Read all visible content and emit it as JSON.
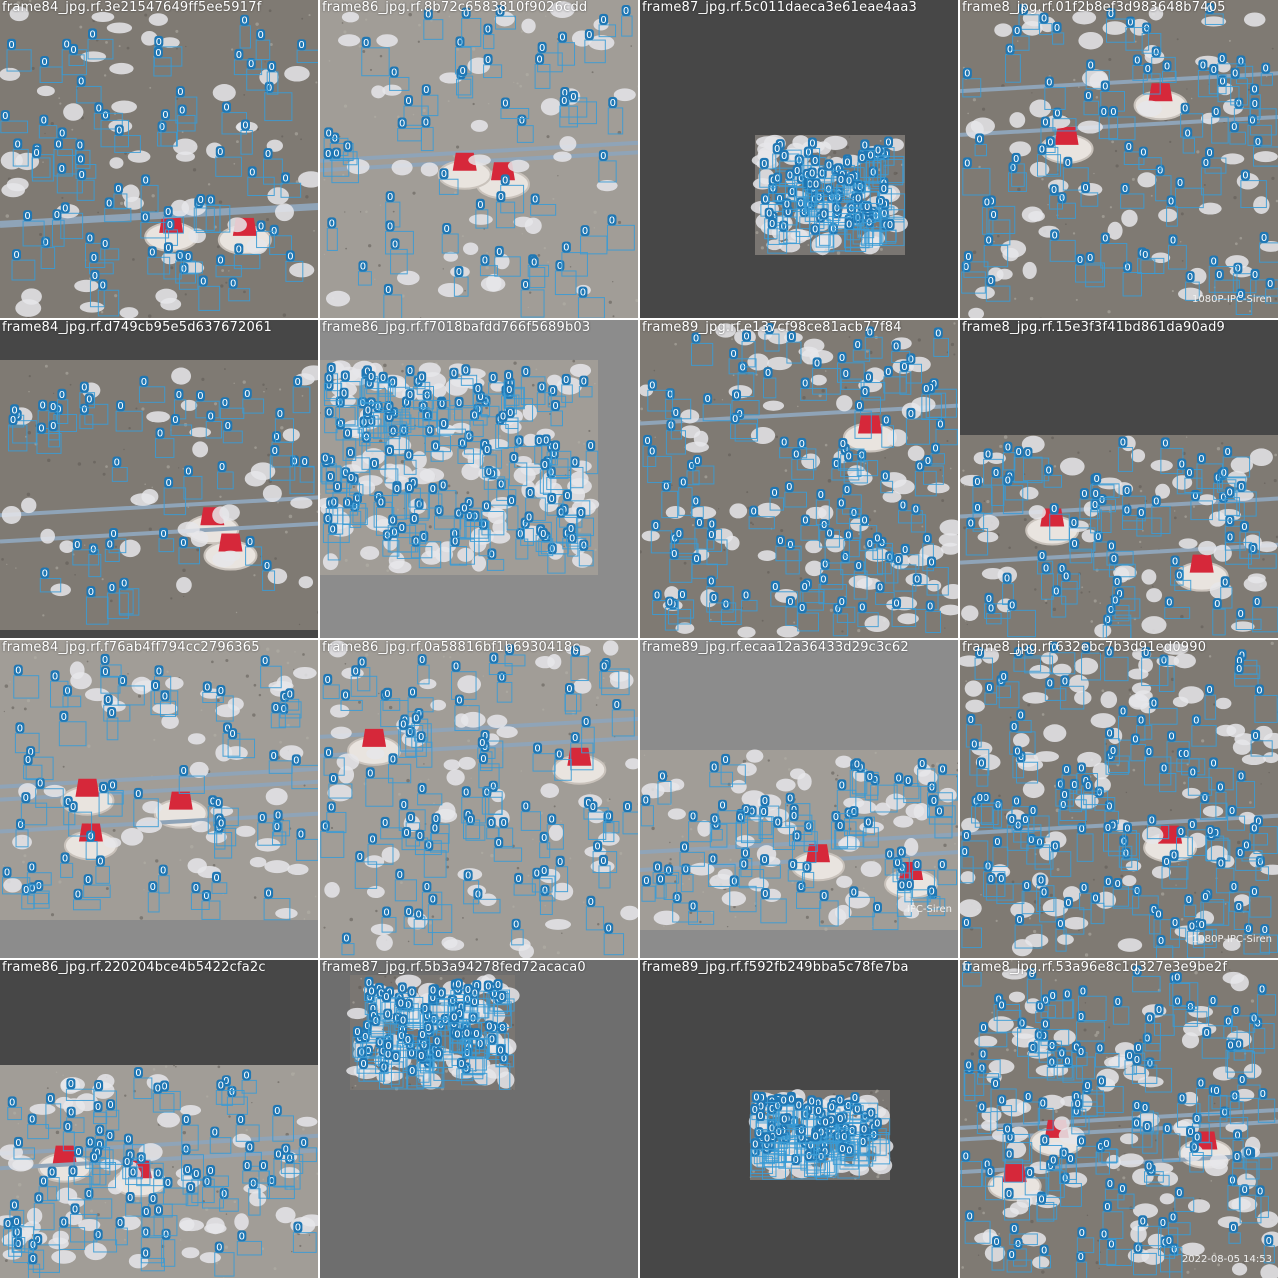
{
  "mosaic": {
    "class_label": "0",
    "colors": {
      "box": "#3a9bd5",
      "label_bg": "#1f77b4",
      "label_text": "#ffffff",
      "feeder_red": "#d6283a",
      "pad_dark": "#474747",
      "pad_gray": "#8c8c8c"
    },
    "tiles": [
      {
        "title": "frame84_jpg.rf.3e21547649ff5ee5917f",
        "bg": "floor",
        "feeders": 2,
        "seed": 11,
        "count": 70,
        "pad": "none"
      },
      {
        "title": "frame86_jpg.rf.8b72c6583810f9026cdd",
        "bg": "light",
        "feeders": 2,
        "seed": 23,
        "count": 55,
        "pad": "none"
      },
      {
        "title": "frame87_jpg.rf.5c011daeca3e61eae4aa3",
        "bg": "dark",
        "feeders": 0,
        "seed": 37,
        "count": 90,
        "pad": "dark-center"
      },
      {
        "title": "frame8_jpg.rf.01f2b8ef3d983648b7405",
        "bg": "floor",
        "feeders": 2,
        "seed": 41,
        "count": 80,
        "pad": "none"
      },
      {
        "title": "frame84_jpg.rf.d749cb95e5d637672061",
        "bg": "floor",
        "feeders": 2,
        "seed": 53,
        "count": 45,
        "pad": "top-bottom-dark"
      },
      {
        "title": "frame86_jpg.rf.f7018bafdd766f5689b03",
        "bg": "light",
        "feeders": 0,
        "seed": 67,
        "count": 150,
        "pad": "gray-frame"
      },
      {
        "title": "frame89_jpg.rf.e137cf98ce81acb77f84",
        "bg": "floor",
        "feeders": 1,
        "seed": 71,
        "count": 110,
        "pad": "none"
      },
      {
        "title": "frame8_jpg.rf.15e3f3f41bd861da90ad9",
        "bg": "floor",
        "feeders": 2,
        "seed": 83,
        "count": 65,
        "pad": "top-dark"
      },
      {
        "title": "frame84_jpg.rf.f76ab4ff794cc2796365",
        "bg": "light",
        "feeders": 3,
        "seed": 97,
        "count": 60,
        "pad": "bottom-gray"
      },
      {
        "title": "frame86_jpg.rf.0a58816bf1b6930418c",
        "bg": "light",
        "feeders": 2,
        "seed": 101,
        "count": 85,
        "pad": "none"
      },
      {
        "title": "frame89_jpg.rf.ecaa12a36433d29c3c62",
        "bg": "light",
        "feeders": 2,
        "seed": 113,
        "count": 70,
        "pad": "top-bottom-gray"
      },
      {
        "title": "frame8_jpg.rf.632ebc7b3d91ed0990",
        "bg": "floor",
        "feeders": 1,
        "seed": 127,
        "count": 120,
        "pad": "none"
      },
      {
        "title": "frame86_jpg.rf.220204bce4b5422cfa2c",
        "bg": "light",
        "feeders": 2,
        "seed": 131,
        "count": 80,
        "pad": "top-dark-half"
      },
      {
        "title": "frame87_jpg.rf.5b3a94278fed72acaca0",
        "bg": "dark",
        "feeders": 0,
        "seed": 149,
        "count": 110,
        "pad": "top-left-block"
      },
      {
        "title": "frame89_jpg.rf.f592fb249bba5c78fe7ba",
        "bg": "dark",
        "feeders": 0,
        "seed": 157,
        "count": 100,
        "pad": "dark-small-center"
      },
      {
        "title": "frame8_jpg.rf.53a96e8c1d327e3e9be2f",
        "bg": "floor",
        "feeders": 3,
        "seed": 163,
        "count": 130,
        "pad": "none"
      }
    ],
    "overlays": {
      "tile_4": "1080P-IPC-Siren",
      "tile_11": "IPC-Siren",
      "tile_12": "1080P-IPC-Siren",
      "tile_16": "2022-08-05 14:53"
    }
  }
}
